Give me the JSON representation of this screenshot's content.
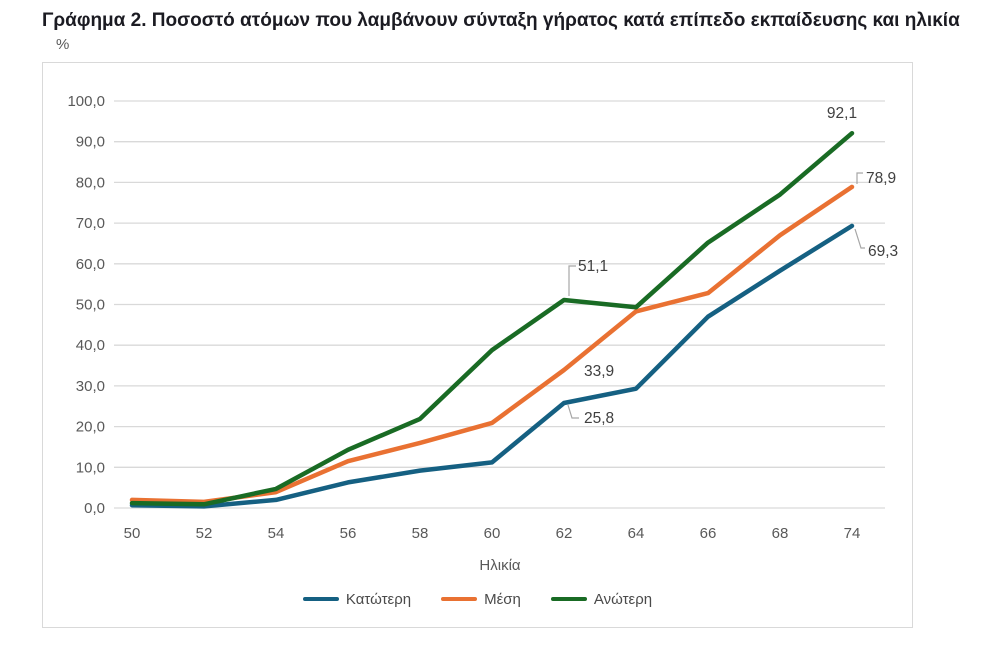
{
  "page": {
    "title": "Γράφημα 2. Ποσοστό ατόμων που λαμβάνουν σύνταξη γήρατος κατά επίπεδο εκπαίδευσης και ηλικία"
  },
  "chart_data": {
    "type": "line",
    "title": "Γράφημα 2. Ποσοστό ατόμων που λαμβάνουν σύνταξη γήρατος κατά επίπεδο εκπαίδευσης και ηλικία",
    "unit_label": "%",
    "xlabel": "Ηλικία",
    "ylabel": "%",
    "ylim": [
      0,
      100
    ],
    "grid": true,
    "legend_position": "bottom",
    "categories": [
      "50",
      "52",
      "54",
      "56",
      "58",
      "60",
      "62",
      "64",
      "66",
      "68",
      "74"
    ],
    "y_ticks": {
      "values": [
        0,
        10,
        20,
        30,
        40,
        50,
        60,
        70,
        80,
        90,
        100
      ],
      "labels": [
        "0,0",
        "10,0",
        "20,0",
        "30,0",
        "40,0",
        "50,0",
        "60,0",
        "70,0",
        "80,0",
        "90,0",
        "100,0"
      ]
    },
    "series": [
      {
        "name": "Κατώτερη",
        "color": "#156082",
        "values": [
          0.7,
          0.4,
          2.0,
          6.3,
          9.2,
          11.2,
          25.8,
          29.3,
          47.0,
          58.3,
          69.3
        ]
      },
      {
        "name": "Μέση",
        "color": "#E97132",
        "values": [
          2.0,
          1.5,
          3.9,
          11.5,
          16.0,
          20.9,
          33.9,
          48.3,
          52.8,
          67.0,
          78.9
        ]
      },
      {
        "name": "Ανώτερη",
        "color": "#196B24",
        "values": [
          1.2,
          0.9,
          4.7,
          14.3,
          21.9,
          38.8,
          51.1,
          49.3,
          65.2,
          77.0,
          92.1
        ]
      }
    ],
    "callouts": [
      {
        "series": "Ανώτερη",
        "category": "62",
        "label": "51,1"
      },
      {
        "series": "Μέση",
        "category": "62",
        "label": "33,9"
      },
      {
        "series": "Κατώτερη",
        "category": "62",
        "label": "25,8"
      },
      {
        "series": "Ανώτερη",
        "category": "74",
        "label": "92,1"
      },
      {
        "series": "Μέση",
        "category": "74",
        "label": "78,9"
      },
      {
        "series": "Κατώτερη",
        "category": "74",
        "label": "69,3"
      }
    ],
    "colors": {
      "gridline": "#D9D9D9",
      "axis_text": "#595959",
      "data_label": "#404040",
      "leader_line": "#A6A6A6"
    }
  }
}
